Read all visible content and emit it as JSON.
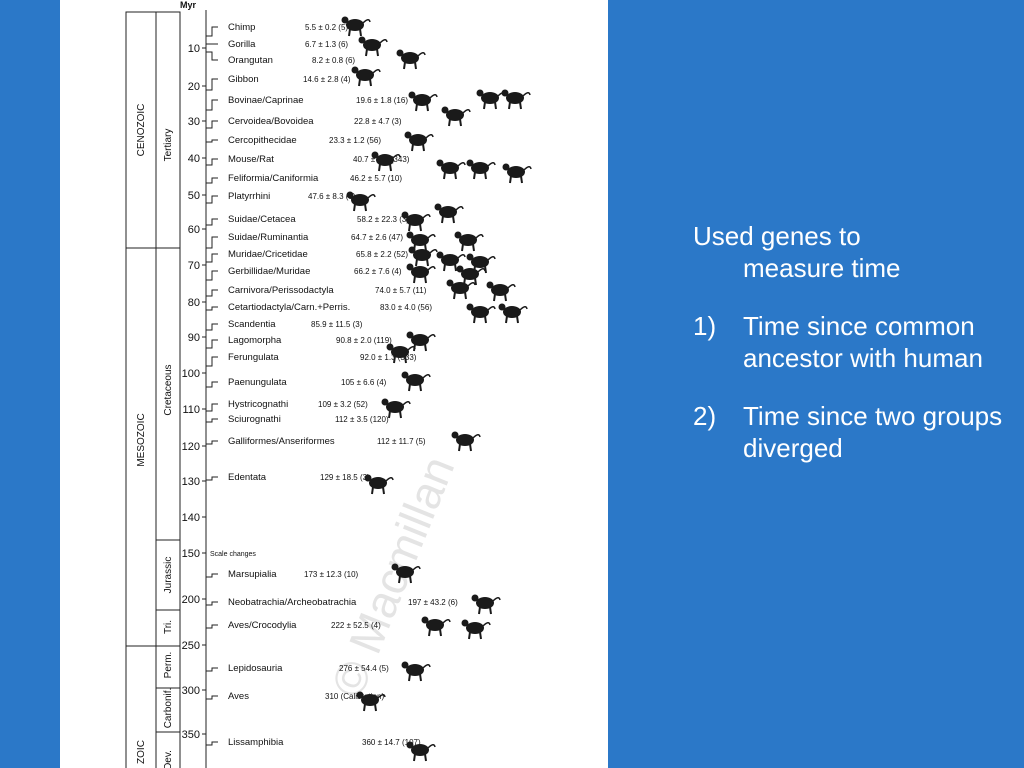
{
  "figure": {
    "unit_label": "Myr",
    "eras": [
      {
        "label": "CENOZOIC"
      },
      {
        "label": "MESOZOIC"
      },
      {
        "label": "ZOIC"
      }
    ],
    "periods": [
      {
        "label": "Tertiary"
      },
      {
        "label": "Cretaceous"
      },
      {
        "label": "Jurassic"
      },
      {
        "label": "Tri."
      },
      {
        "label": "Perm."
      },
      {
        "label": "Carbonif."
      },
      {
        "label": "Dev."
      }
    ],
    "ticks": [
      "10",
      "20",
      "30",
      "40",
      "50",
      "60",
      "70",
      "80",
      "90",
      "100",
      "110",
      "120",
      "130",
      "140",
      "150",
      "200",
      "250",
      "300",
      "350"
    ],
    "scale_note": "Scale changes",
    "taxa": [
      {
        "name": "Chimp",
        "date": "5.5 ± 0.2 (5)",
        "icon": "chimp-icon"
      },
      {
        "name": "Gorilla",
        "date": "6.7 ± 1.3 (6)",
        "icon": "gorilla-icon"
      },
      {
        "name": "Orangutan",
        "date": "8.2 ± 0.8 (6)",
        "icon": "orangutan-icon"
      },
      {
        "name": "Gibbon",
        "date": "14.6 ± 2.8 (4)",
        "icon": "gibbon-icon"
      },
      {
        "name": "Bovinae/Caprinae",
        "date": "19.6 ± 1.8 (16)",
        "icon": "cow-icon"
      },
      {
        "name": "Cervoidea/Bovoidea",
        "date": "22.8 ± 4.7 (3)",
        "icon": "deer-icon"
      },
      {
        "name": "Cercopithecidae",
        "date": "23.3 ± 1.2 (56)",
        "icon": "monkey-icon"
      },
      {
        "name": "Mouse/Rat",
        "date": "40.7 ± 0.9 (343)",
        "icon": "mouse-icon"
      },
      {
        "name": "Feliformia/Caniformia",
        "date": "46.2 ± 5.7 (10)",
        "icon": "cat-dog-icon"
      },
      {
        "name": "Platyrrhini",
        "date": "47.6 ± 8.3 (9)",
        "icon": "new-world-monkey-icon"
      },
      {
        "name": "Suidae/Cetacea",
        "date": "58.2 ± 22.3 (3)",
        "icon": "pig-whale-icon"
      },
      {
        "name": "Suidae/Ruminantia",
        "date": "64.7 ± 2.6 (47)",
        "icon": "pig-cow-icon"
      },
      {
        "name": "Muridae/Cricetidae",
        "date": "65.8 ± 2.2 (52)",
        "icon": "rat-hamster-icon"
      },
      {
        "name": "Gerbillidae/Muridae",
        "date": "66.2 ± 7.6 (4)",
        "icon": "gerbil-icon"
      },
      {
        "name": "Carnivora/Perissodactyla",
        "date": "74.0 ± 5.7 (11)",
        "icon": "horse-icon"
      },
      {
        "name": "Cetartiodactyla/Carn.+Perris.",
        "date": "83.0 ± 4.0 (56)",
        "icon": "ungulate-icon"
      },
      {
        "name": "Scandentia",
        "date": "85.9 ± 11.5 (3)",
        "icon": "tree-shrew-icon"
      },
      {
        "name": "Lagomorpha",
        "date": "90.8 ± 2.0 (119)",
        "icon": "rabbit-icon"
      },
      {
        "name": "Ferungulata",
        "date": "92.0 ± 1.3 (333)",
        "icon": "ferungulata-icon"
      },
      {
        "name": "Paenungulata",
        "date": "105 ± 6.6 (4)",
        "icon": "elephant-icon"
      },
      {
        "name": "Hystricognathi",
        "date": "109 ± 3.2 (52)",
        "icon": "guinea-pig-icon"
      },
      {
        "name": "Sciurognathi",
        "date": "112 ± 3.5 (120)",
        "icon": "squirrel-icon"
      },
      {
        "name": "Galliformes/Anseriformes",
        "date": "112 ± 11.7 (5)",
        "icon": "bird-icon"
      },
      {
        "name": "Edentata",
        "date": "129 ± 18.5 (3)",
        "icon": "sloth-icon"
      },
      {
        "name": "Marsupialia",
        "date": "173 ± 12.3 (10)",
        "icon": "kangaroo-icon"
      },
      {
        "name": "Neobatrachia/Archeobatrachia",
        "date": "197 ± 43.2 (6)",
        "icon": "frog-icon"
      },
      {
        "name": "Aves/Crocodylia",
        "date": "222 ± 52.5 (4)",
        "icon": "crocodile-icon"
      },
      {
        "name": "Lepidosauria",
        "date": "276 ± 54.4 (5)",
        "icon": "lizard-icon"
      },
      {
        "name": "Aves",
        "date": "310 (Calibration)",
        "icon": "bird-icon"
      },
      {
        "name": "Lissamphibia",
        "date": "360 ± 14.7 (107)",
        "icon": "salamander-icon"
      }
    ],
    "watermark": "© Macmillan"
  },
  "panel": {
    "intro_line1": "Used genes to",
    "intro_line2": "measure time",
    "items": [
      {
        "num": "1)",
        "text": "Time since common ancestor with human"
      },
      {
        "num": "2)",
        "text": "Time since two groups diverged"
      }
    ]
  },
  "colors": {
    "background": "#2b78c8",
    "figure_bg": "#ffffff",
    "text": "#ffffff"
  }
}
